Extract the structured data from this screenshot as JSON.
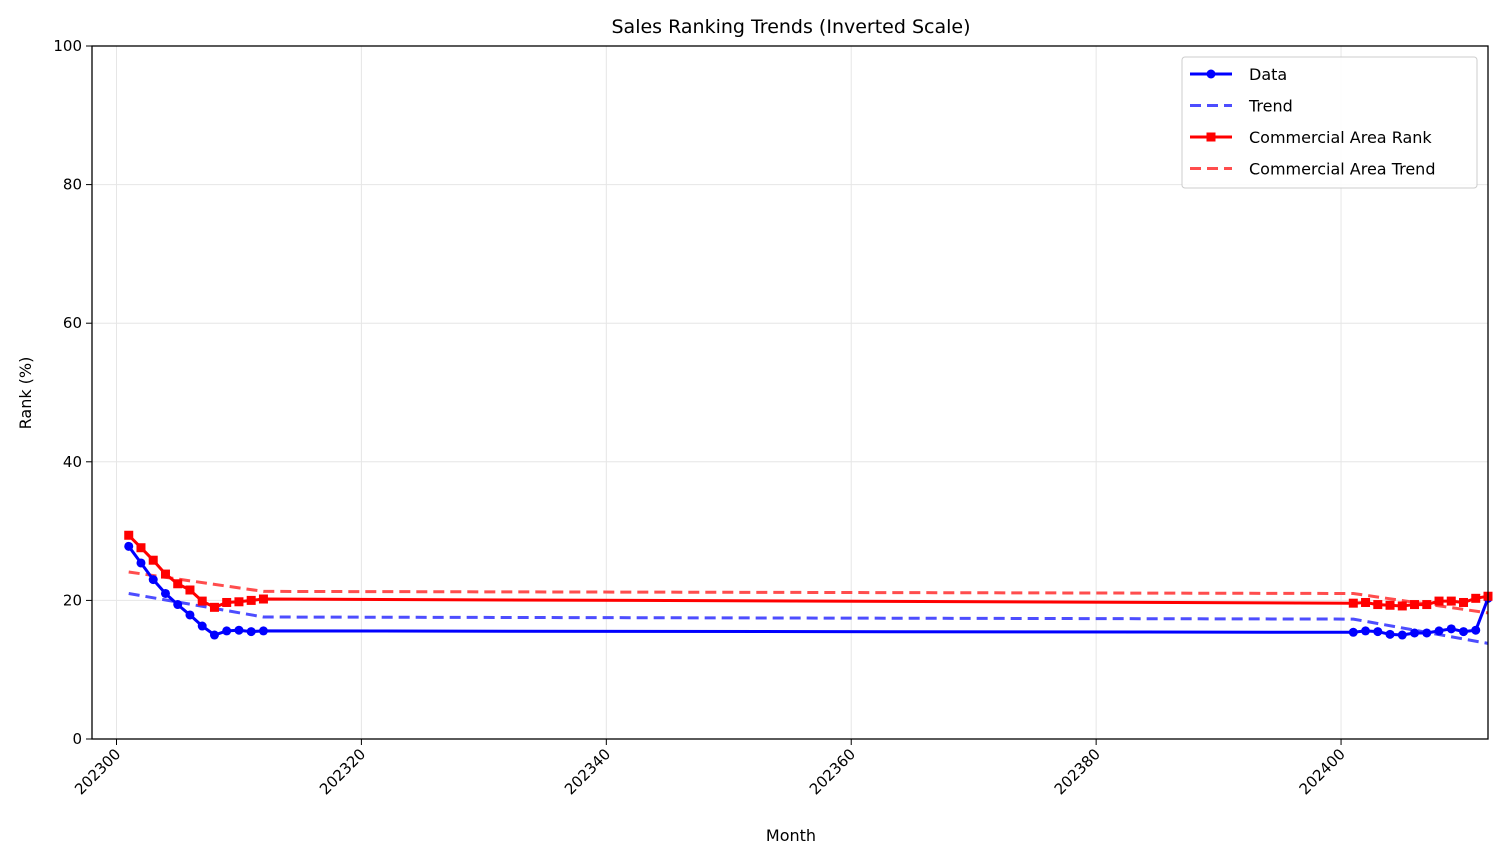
{
  "chart_data": {
    "type": "line",
    "title": "Sales Ranking Trends (Inverted Scale)",
    "xlabel": "Month",
    "ylabel": "Rank (%)",
    "xlim": [
      202298,
      202412
    ],
    "ylim": [
      0,
      100
    ],
    "xticks": [
      202300,
      202320,
      202340,
      202360,
      202380,
      202400
    ],
    "yticks": [
      0,
      20,
      40,
      60,
      80,
      100
    ],
    "grid": true,
    "legend_position": "top-right",
    "series": [
      {
        "name": "Data",
        "color": "#0000ff",
        "style": "solid-circle",
        "x": [
          202301,
          202302,
          202303,
          202304,
          202305,
          202306,
          202307,
          202308,
          202309,
          202310,
          202311,
          202312,
          202401,
          202402,
          202403,
          202404,
          202405,
          202406,
          202407,
          202408,
          202409,
          202410,
          202411,
          202412
        ],
        "y": [
          27.8,
          25.4,
          23.0,
          21.0,
          19.4,
          17.9,
          16.3,
          15.0,
          15.6,
          15.7,
          15.5,
          15.6,
          15.4,
          15.6,
          15.5,
          15.1,
          15.0,
          15.3,
          15.3,
          15.6,
          15.9,
          15.5,
          15.7,
          20.3
        ]
      },
      {
        "name": "Trend",
        "color": "#4d4dff",
        "style": "dashed",
        "x": [
          202301,
          202312,
          202401,
          202412
        ],
        "y": [
          21.0,
          17.6,
          17.3,
          13.8
        ]
      },
      {
        "name": "Commercial Area Rank",
        "color": "#ff0000",
        "style": "solid-square",
        "x": [
          202301,
          202302,
          202303,
          202304,
          202305,
          202306,
          202307,
          202308,
          202309,
          202310,
          202311,
          202312,
          202401,
          202402,
          202403,
          202404,
          202405,
          202406,
          202407,
          202408,
          202409,
          202410,
          202411,
          202412
        ],
        "y": [
          29.4,
          27.6,
          25.8,
          23.8,
          22.4,
          21.5,
          19.9,
          19.0,
          19.7,
          19.8,
          20.0,
          20.2,
          19.6,
          19.7,
          19.4,
          19.3,
          19.2,
          19.4,
          19.4,
          19.9,
          19.9,
          19.7,
          20.3,
          20.6
        ]
      },
      {
        "name": "Commercial Area Trend",
        "color": "#ff4d4d",
        "style": "dashed",
        "x": [
          202301,
          202312,
          202401,
          202412
        ],
        "y": [
          24.1,
          21.3,
          21.0,
          18.2
        ]
      }
    ]
  }
}
